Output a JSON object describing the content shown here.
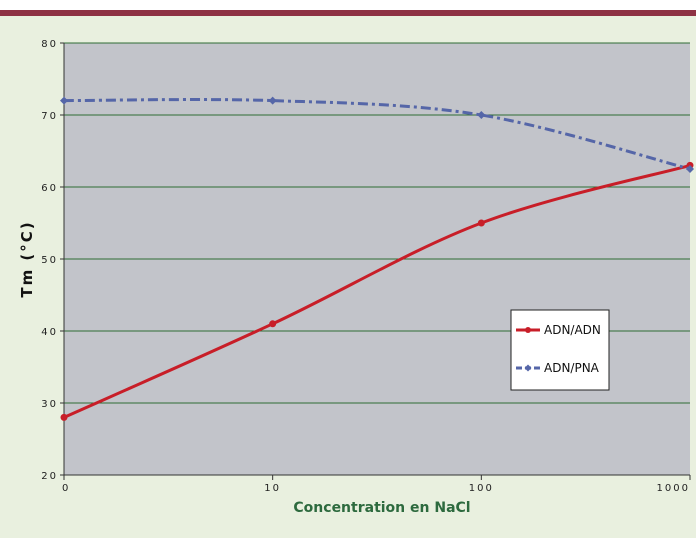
{
  "chart_data": {
    "type": "line",
    "xscale": "log",
    "x_tick_labels": [
      "0",
      "10",
      "100",
      "1000"
    ],
    "y_tick_labels": [
      "20",
      "30",
      "40",
      "50",
      "60",
      "70",
      "80"
    ],
    "ylim": [
      20,
      80
    ],
    "xlabel": "Concentration en NaCl",
    "ylabel": "Tm (°C)",
    "legend_position": "right-middle",
    "grid": "horizontal",
    "series": [
      {
        "name": "ADN/ADN",
        "color": "#c81e28",
        "style": "solid",
        "marker": "circle",
        "points": [
          [
            1,
            28
          ],
          [
            10,
            41
          ],
          [
            100,
            55
          ],
          [
            1000,
            63
          ]
        ]
      },
      {
        "name": "ADN/PNA",
        "color": "#5566a8",
        "style": "dash-dot",
        "marker": "diamond",
        "points": [
          [
            1,
            72
          ],
          [
            10,
            72
          ],
          [
            100,
            70
          ],
          [
            1000,
            62.5
          ]
        ]
      }
    ]
  },
  "colors": {
    "plot_background": "#c2c4ca",
    "gridline": "#2f6b34",
    "page_background": "#e9f0df",
    "top_rule": "#8e3244"
  }
}
